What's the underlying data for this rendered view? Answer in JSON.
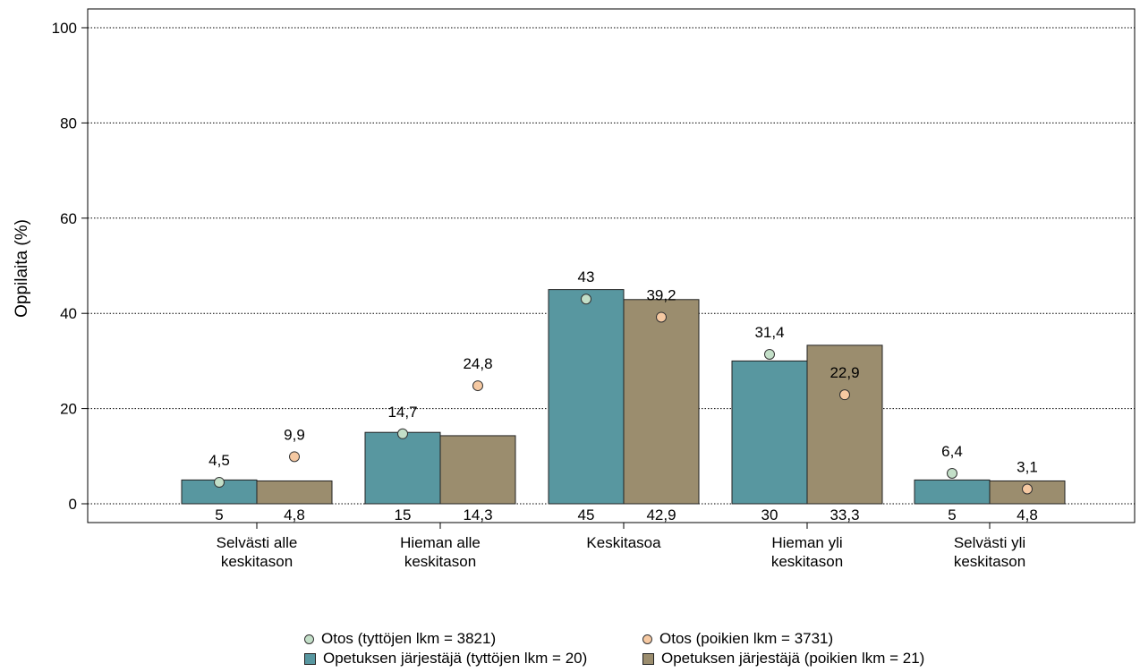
{
  "chart_data": {
    "type": "bar",
    "ylabel": "Oppilaita (%)",
    "ylim": [
      0,
      100
    ],
    "yticks": [
      0,
      20,
      40,
      60,
      80,
      100
    ],
    "grid": "horizontal-dotted",
    "categories": [
      [
        "Selvästi alle",
        "keskitason"
      ],
      [
        "Hieman alle",
        "keskitason"
      ],
      [
        "Keskitasoa"
      ],
      [
        "Hieman yli",
        "keskitason"
      ],
      [
        "Selvästi yli",
        "keskitason"
      ]
    ],
    "bar_series": [
      {
        "name": "Opetuksen järjestäjä (tyttöjen lkm = 20)",
        "color": "#5897a0",
        "values": [
          5,
          15,
          45,
          30,
          5
        ],
        "labels": [
          "5",
          "15",
          "45",
          "30",
          "5"
        ]
      },
      {
        "name": "Opetuksen järjestäjä (poikien lkm = 21)",
        "color": "#9b8d6e",
        "values": [
          4.8,
          14.3,
          42.9,
          33.3,
          4.8
        ],
        "labels": [
          "4,8",
          "14,3",
          "42,9",
          "33,3",
          "4,8"
        ]
      }
    ],
    "point_series": [
      {
        "name": "Otos (tyttöjen lkm = 3821)",
        "color": "#c3dfc8",
        "values": [
          4.5,
          14.7,
          43,
          31.4,
          6.4
        ],
        "labels": [
          "4,5",
          "14,7",
          "43",
          "31,4",
          "6,4"
        ]
      },
      {
        "name": "Otos (poikien lkm = 3731)",
        "color": "#f6c9a2",
        "values": [
          9.9,
          24.8,
          39.2,
          22.9,
          3.1
        ],
        "labels": [
          "9,9",
          "24,8",
          "39,2",
          "22,9",
          "3,1"
        ]
      }
    ],
    "legend_position": "bottom"
  }
}
